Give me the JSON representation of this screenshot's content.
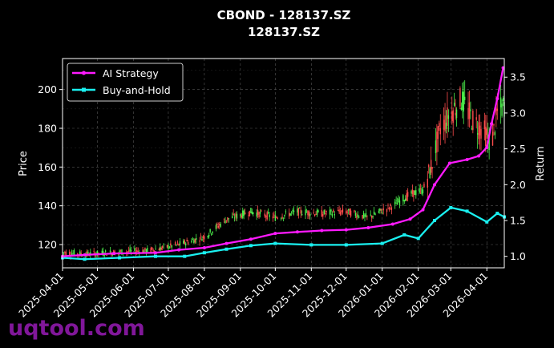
{
  "chart_data": {
    "type": "candlestick+line",
    "title": "CBOND - 128137.SZ",
    "subtitle": "128137.SZ",
    "xlabel": "",
    "ylabel": "Price",
    "y2label": "Return",
    "ylim": [
      108,
      216
    ],
    "y2lim": [
      0.84,
      3.76
    ],
    "yticks": [
      120,
      140,
      160,
      180,
      200
    ],
    "y2ticks": [
      1.0,
      1.5,
      2.0,
      2.5,
      3.0,
      3.5
    ],
    "xticks": [
      "2025-04-01",
      "2025-05-01",
      "2025-06-01",
      "2025-07-01",
      "2025-08-01",
      "2025-09-01",
      "2025-10-01",
      "2025-11-01",
      "2025-12-01",
      "2026-01-01",
      "2026-02-01",
      "2026-03-01",
      "2026-04-01"
    ],
    "xrange": [
      "2025-04-01",
      "2026-04-16"
    ],
    "grid": true,
    "legend_position": "top-left",
    "colors": {
      "up": "#4cf04c",
      "down": "#ff4d4d",
      "strategy": "#ff1aff",
      "buyhold": "#1af0f0",
      "watermark": "#8d1aa8"
    },
    "series": [
      {
        "name": "AI Strategy",
        "points": [
          [
            "2025-04-01",
            1.0
          ],
          [
            "2025-04-20",
            1.02
          ],
          [
            "2025-05-15",
            1.04
          ],
          [
            "2025-06-20",
            1.05
          ],
          [
            "2025-07-10",
            1.09
          ],
          [
            "2025-08-01",
            1.12
          ],
          [
            "2025-08-20",
            1.18
          ],
          [
            "2025-09-10",
            1.24
          ],
          [
            "2025-10-01",
            1.32
          ],
          [
            "2025-10-20",
            1.34
          ],
          [
            "2025-11-10",
            1.36
          ],
          [
            "2025-12-01",
            1.37
          ],
          [
            "2025-12-20",
            1.4
          ],
          [
            "2026-01-10",
            1.45
          ],
          [
            "2026-01-25",
            1.52
          ],
          [
            "2026-02-05",
            1.65
          ],
          [
            "2026-02-15",
            2.0
          ],
          [
            "2026-02-28",
            2.3
          ],
          [
            "2026-03-15",
            2.35
          ],
          [
            "2026-03-25",
            2.4
          ],
          [
            "2026-04-01",
            2.52
          ],
          [
            "2026-04-05",
            2.85
          ],
          [
            "2026-04-10",
            3.2
          ],
          [
            "2026-04-15",
            3.63
          ]
        ]
      },
      {
        "name": "Buy-and-Hold",
        "points": [
          [
            "2025-04-01",
            0.98
          ],
          [
            "2025-04-20",
            0.96
          ],
          [
            "2025-05-20",
            0.98
          ],
          [
            "2025-06-20",
            1.0
          ],
          [
            "2025-07-15",
            1.0
          ],
          [
            "2025-08-01",
            1.05
          ],
          [
            "2025-08-20",
            1.1
          ],
          [
            "2025-09-10",
            1.15
          ],
          [
            "2025-10-01",
            1.18
          ],
          [
            "2025-11-01",
            1.16
          ],
          [
            "2025-12-01",
            1.16
          ],
          [
            "2026-01-01",
            1.18
          ],
          [
            "2026-01-20",
            1.3
          ],
          [
            "2026-02-01",
            1.25
          ],
          [
            "2026-02-15",
            1.5
          ],
          [
            "2026-03-01",
            1.68
          ],
          [
            "2026-03-15",
            1.63
          ],
          [
            "2026-04-01",
            1.48
          ],
          [
            "2026-04-10",
            1.6
          ],
          [
            "2026-04-16",
            1.55
          ]
        ]
      }
    ],
    "price_path": [
      [
        "2025-04-01",
        116
      ],
      [
        "2025-04-20",
        115
      ],
      [
        "2025-05-15",
        116
      ],
      [
        "2025-06-15",
        117
      ],
      [
        "2025-07-10",
        120
      ],
      [
        "2025-08-01",
        124
      ],
      [
        "2025-08-20",
        133
      ],
      [
        "2025-09-10",
        137
      ],
      [
        "2025-10-01",
        134
      ],
      [
        "2025-10-20",
        137
      ],
      [
        "2025-11-10",
        136
      ],
      [
        "2025-12-01",
        137
      ],
      [
        "2025-12-20",
        134
      ],
      [
        "2026-01-10",
        140
      ],
      [
        "2026-01-25",
        146
      ],
      [
        "2026-02-05",
        148
      ],
      [
        "2026-02-12",
        160
      ],
      [
        "2026-02-20",
        180
      ],
      [
        "2026-03-01",
        188
      ],
      [
        "2026-03-10",
        195
      ],
      [
        "2026-03-20",
        184
      ],
      [
        "2026-03-30",
        178
      ],
      [
        "2026-04-05",
        172
      ],
      [
        "2026-04-10",
        188
      ],
      [
        "2026-04-16",
        192
      ]
    ]
  },
  "legend": {
    "strategy": "AI Strategy",
    "buyhold": "Buy-and-Hold"
  },
  "watermark": "uqtool.com"
}
